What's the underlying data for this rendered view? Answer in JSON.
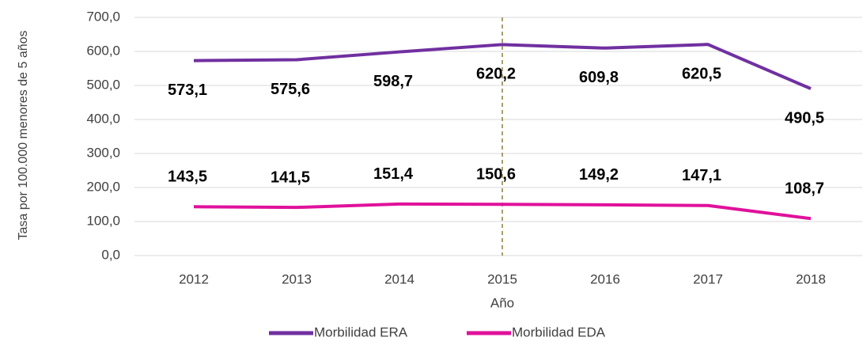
{
  "chart_data": {
    "type": "line",
    "x_label": "Año",
    "y_label": "Tasa por 100.000 menores de 5 años",
    "categories": [
      "2012",
      "2013",
      "2014",
      "2015",
      "2016",
      "2017",
      "2018"
    ],
    "series": [
      {
        "name": "Morbilidad ERA",
        "color": "#7030a0",
        "label_side": "below",
        "values": [
          573.1,
          575.6,
          598.7,
          620.2,
          609.8,
          620.5,
          490.5
        ],
        "value_labels": [
          "573,1",
          "575,6",
          "598,7",
          "620,2",
          "609,8",
          "620,5",
          "490,5"
        ]
      },
      {
        "name": "Morbilidad EDA",
        "color": "#e0119b",
        "label_side": "above",
        "values": [
          143.5,
          141.5,
          151.4,
          150.6,
          149.2,
          147.1,
          108.7
        ],
        "value_labels": [
          "143,5",
          "141,5",
          "151,4",
          "150,6",
          "149,2",
          "147,1",
          "108,7"
        ]
      }
    ],
    "ylim": [
      0,
      700
    ],
    "yticks": [
      {
        "value": 0,
        "label": "0,0"
      },
      {
        "value": 100,
        "label": "100,0"
      },
      {
        "value": 200,
        "label": "200,0"
      },
      {
        "value": 300,
        "label": "300,0"
      },
      {
        "value": 400,
        "label": "400,0"
      },
      {
        "value": 500,
        "label": "500,0"
      },
      {
        "value": 600,
        "label": "600,0"
      },
      {
        "value": 700,
        "label": "700,0"
      }
    ],
    "grid": true,
    "reference_line_category": "2015",
    "reference_line_color": "#8c7e3c",
    "legend": "bottom"
  }
}
